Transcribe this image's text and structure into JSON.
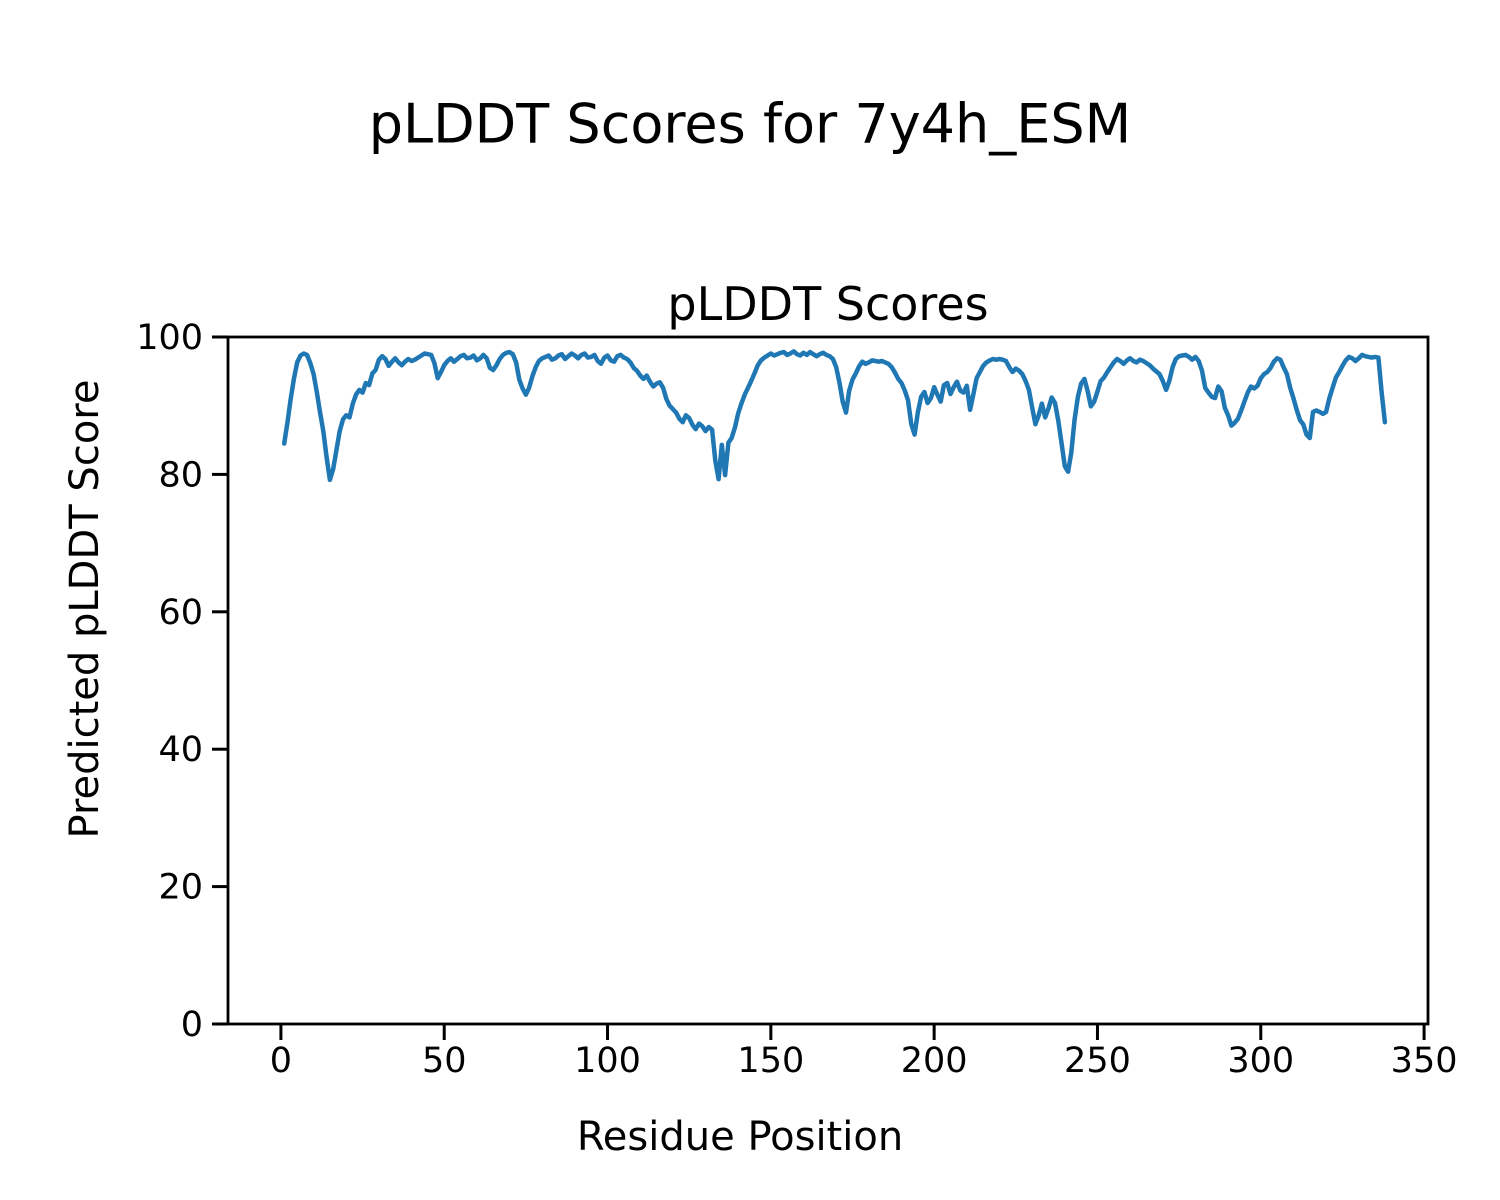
{
  "figure": {
    "suptitle": "pLDDT Scores for 7y4h_ESM"
  },
  "chart_data": {
    "type": "line",
    "title": "pLDDT Scores",
    "xlabel": "Residue Position",
    "ylabel": "Predicted pLDDT Score",
    "series_name": "pLDDT",
    "x_start": 1,
    "x_step": 1,
    "n_points": 338,
    "y": [
      84.5,
      87.5,
      91.0,
      94.0,
      96.3,
      97.3,
      97.6,
      97.4,
      96.2,
      94.6,
      92.0,
      89.0,
      86.2,
      82.5,
      79.2,
      80.8,
      83.5,
      86.3,
      88.0,
      88.6,
      88.3,
      90.3,
      91.6,
      92.3,
      91.9,
      93.3,
      93.0,
      94.7,
      95.2,
      96.7,
      97.2,
      96.8,
      95.8,
      96.4,
      96.9,
      96.3,
      95.9,
      96.4,
      96.8,
      96.5,
      96.7,
      97.0,
      97.3,
      97.6,
      97.5,
      97.4,
      96.2,
      94.0,
      94.9,
      95.9,
      96.5,
      96.9,
      96.4,
      96.8,
      97.2,
      97.4,
      96.9,
      97.0,
      97.3,
      96.6,
      96.9,
      97.4,
      96.9,
      95.5,
      95.2,
      95.9,
      96.8,
      97.4,
      97.7,
      97.8,
      97.5,
      96.3,
      93.8,
      92.5,
      91.6,
      92.6,
      94.3,
      95.6,
      96.5,
      96.9,
      97.1,
      97.3,
      96.7,
      96.9,
      97.3,
      97.5,
      96.8,
      97.2,
      97.6,
      97.3,
      96.9,
      97.4,
      97.6,
      97.0,
      97.1,
      97.4,
      96.5,
      96.1,
      97.0,
      97.3,
      96.6,
      96.4,
      97.2,
      97.4,
      97.0,
      96.8,
      96.3,
      95.5,
      95.1,
      94.4,
      93.9,
      94.4,
      93.5,
      92.8,
      93.2,
      93.4,
      92.6,
      91.0,
      90.0,
      89.5,
      89.0,
      88.1,
      87.6,
      88.6,
      88.2,
      87.2,
      86.6,
      87.4,
      87.0,
      86.3,
      86.9,
      86.5,
      82.0,
      79.3,
      84.3,
      79.9,
      84.6,
      85.3,
      86.8,
      88.9,
      90.3,
      91.6,
      92.6,
      93.6,
      94.7,
      95.9,
      96.6,
      97.0,
      97.3,
      97.6,
      97.3,
      97.5,
      97.7,
      97.8,
      97.4,
      97.6,
      97.9,
      97.5,
      97.3,
      97.7,
      97.4,
      97.8,
      97.5,
      97.2,
      97.5,
      97.7,
      97.4,
      97.2,
      96.8,
      95.6,
      93.4,
      90.6,
      89.0,
      92.2,
      93.8,
      94.7,
      95.7,
      96.4,
      96.1,
      96.3,
      96.6,
      96.5,
      96.4,
      96.5,
      96.3,
      96.1,
      95.6,
      94.8,
      93.9,
      93.3,
      92.2,
      90.8,
      87.3,
      85.8,
      89.0,
      91.3,
      92.0,
      90.4,
      91.1,
      92.7,
      91.6,
      90.6,
      93.0,
      93.3,
      91.7,
      92.7,
      93.5,
      92.2,
      91.9,
      92.9,
      89.4,
      91.6,
      94.0,
      94.9,
      95.8,
      96.3,
      96.6,
      96.8,
      96.7,
      96.8,
      96.7,
      96.5,
      95.6,
      94.9,
      95.4,
      95.1,
      94.6,
      93.6,
      92.3,
      89.8,
      87.3,
      88.6,
      90.3,
      88.3,
      89.6,
      91.2,
      90.4,
      87.8,
      84.6,
      81.2,
      80.4,
      83.2,
      88.0,
      91.3,
      93.2,
      93.9,
      92.1,
      89.9,
      90.6,
      92.1,
      93.6,
      94.1,
      94.9,
      95.6,
      96.3,
      96.8,
      96.5,
      96.1,
      96.6,
      96.9,
      96.5,
      96.3,
      96.7,
      96.5,
      96.2,
      95.9,
      95.4,
      95.0,
      94.6,
      93.6,
      92.3,
      93.6,
      95.6,
      96.8,
      97.2,
      97.3,
      97.4,
      97.1,
      96.7,
      97.1,
      96.5,
      95.1,
      92.6,
      91.9,
      91.3,
      91.1,
      92.8,
      92.1,
      89.7,
      88.6,
      87.1,
      87.5,
      88.1,
      89.3,
      90.6,
      91.9,
      92.8,
      92.5,
      92.9,
      94.0,
      94.6,
      94.9,
      95.5,
      96.4,
      96.9,
      96.7,
      95.6,
      94.6,
      92.6,
      91.1,
      89.4,
      87.9,
      87.3,
      85.8,
      85.3,
      89.1,
      89.3,
      89.1,
      88.8,
      89.1,
      91.1,
      92.6,
      94.1,
      94.9,
      95.8,
      96.6,
      97.1,
      96.9,
      96.5,
      96.9,
      97.4,
      97.2,
      97.1,
      97.0,
      97.1,
      97.0,
      92.0,
      87.6
    ],
    "xlim": [
      -16.2,
      351.2
    ],
    "ylim": [
      0,
      100
    ],
    "xticks": [
      0,
      50,
      100,
      150,
      200,
      250,
      300,
      350
    ],
    "yticks": [
      0,
      20,
      40,
      60,
      80,
      100
    ],
    "line_color": "#1f77b4",
    "axis_color": "#000000",
    "grid": false,
    "legend": null
  }
}
